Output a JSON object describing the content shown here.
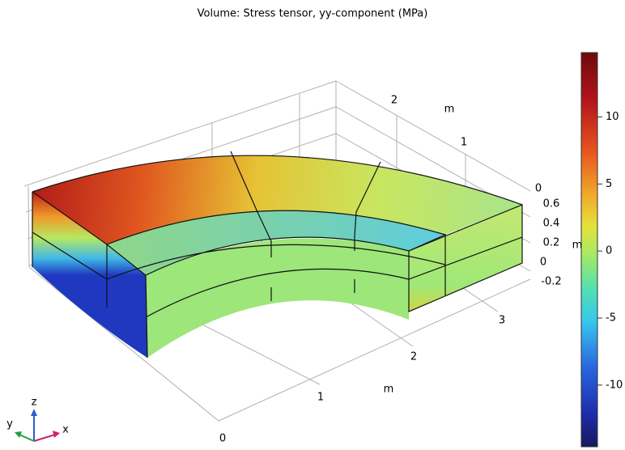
{
  "title": "Volume: Stress tensor, yy-component (MPa)",
  "axes": {
    "x": {
      "label": "m",
      "ticks": [
        "0",
        "1",
        "2",
        "3"
      ]
    },
    "y": {
      "label": "m",
      "ticks": [
        "2",
        "1",
        "0"
      ]
    },
    "z": {
      "label": "m",
      "ticks": [
        "0.6",
        "0.4",
        "0.2",
        "0",
        "-0.2"
      ]
    }
  },
  "triad": {
    "x": "x",
    "y": "y",
    "z": "z"
  },
  "colorbar": {
    "lim": [
      -14.6,
      14.8
    ],
    "ticks": [
      10,
      5,
      0,
      -5,
      -10
    ]
  }
}
